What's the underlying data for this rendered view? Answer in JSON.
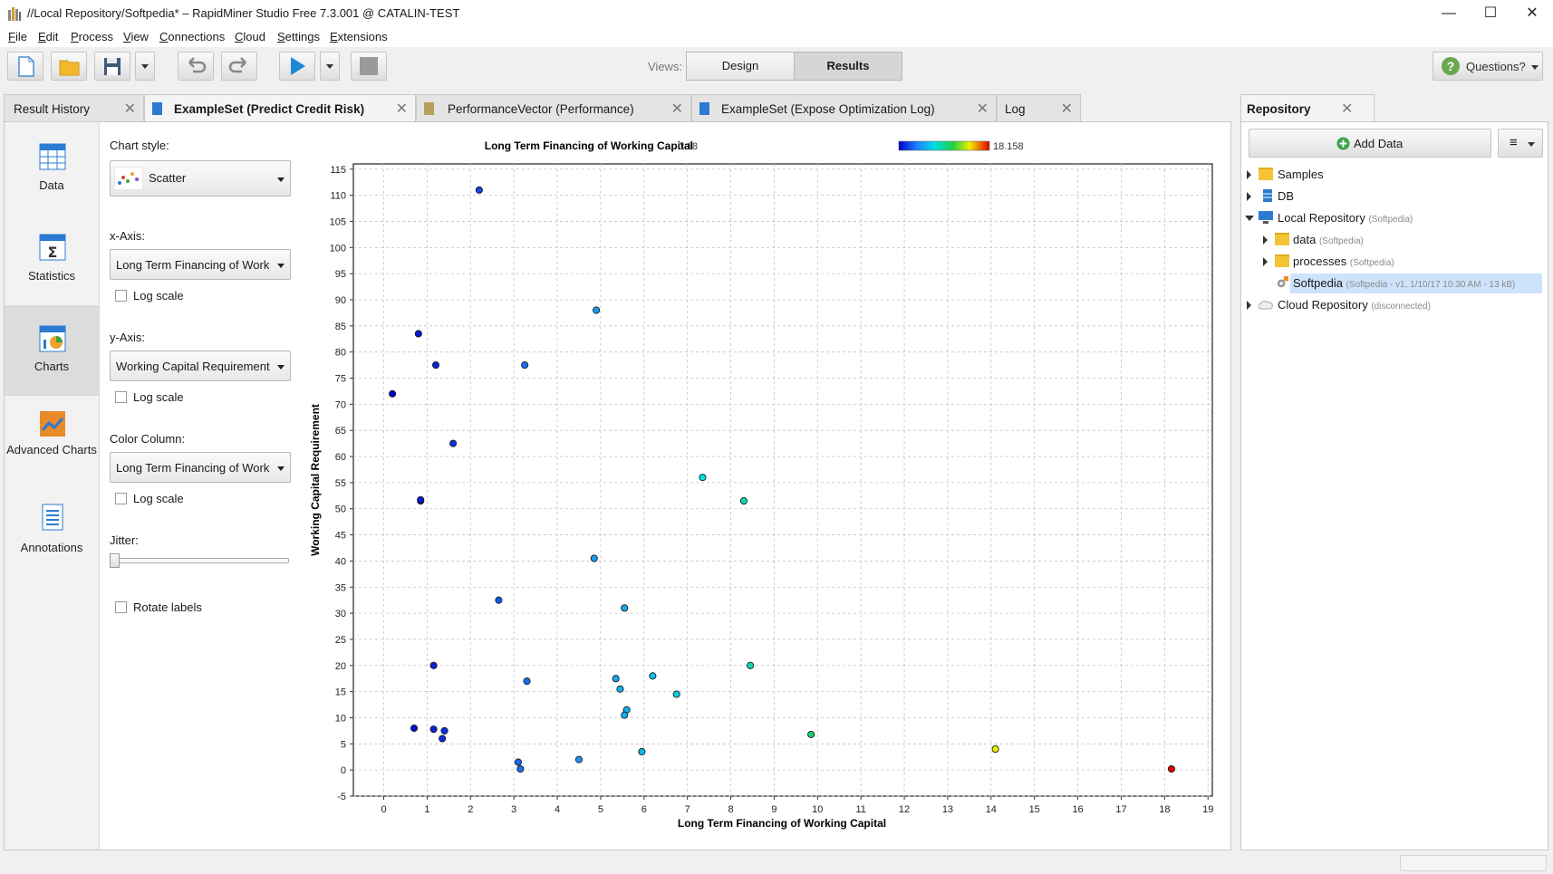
{
  "window": {
    "title": "//Local Repository/Softpedia* – RapidMiner Studio Free 7.3.001 @ CATALIN-TEST",
    "minimize": "—",
    "maximize": "☐",
    "close": "✕"
  },
  "menu": [
    "File",
    "Edit",
    "Process",
    "View",
    "Connections",
    "Cloud",
    "Settings",
    "Extensions"
  ],
  "toolbar": {
    "views_label": "Views:",
    "design_label": "Design",
    "results_label": "Results",
    "questions_label": "Questions?"
  },
  "tabs": [
    {
      "label": "Result History",
      "close": "✕"
    },
    {
      "label": "ExampleSet (Predict Credit Risk)",
      "close": "✕"
    },
    {
      "label": "PerformanceVector (Performance)",
      "close": "✕"
    },
    {
      "label": "ExampleSet (Expose Optimization Log)",
      "close": "✕"
    },
    {
      "label": "Log",
      "close": "✕"
    }
  ],
  "side_nav": [
    {
      "label": "Data",
      "icon": "data-table-icon"
    },
    {
      "label": "Statistics",
      "icon": "statistics-icon"
    },
    {
      "label": "Charts",
      "icon": "charts-icon"
    },
    {
      "label": "Advanced Charts",
      "icon": "advanced-charts-icon"
    },
    {
      "label": "Annotations",
      "icon": "annotations-icon"
    }
  ],
  "config": {
    "chart_style_label": "Chart style:",
    "chart_style_value": "Scatter",
    "x_axis_label": "x-Axis:",
    "x_axis_value": "Long Term Financing of Worki...",
    "x_log_label": "Log scale",
    "y_axis_label": "y-Axis:",
    "y_axis_value": "Working Capital Requirement",
    "y_log_label": "Log scale",
    "color_column_label": "Color Column:",
    "color_column_value": "Long Term Financing of Worki...",
    "color_log_label": "Log scale",
    "jitter_label": "Jitter:",
    "jitter_value": 0,
    "rotate_labels_label": "Rotate labels"
  },
  "chart_data": {
    "type": "scatter",
    "title": "",
    "legend_title": "Long Term Financing of Working Capital",
    "legend_min": "0.18",
    "legend_max": "18.158",
    "xlabel": "Long Term Financing of Working Capital",
    "ylabel": "Working Capital Requirement",
    "xlim": [
      -0.7,
      19.1
    ],
    "ylim": [
      -5,
      116
    ],
    "xticks": [
      0,
      1,
      2,
      3,
      4,
      5,
      6,
      7,
      8,
      9,
      10,
      11,
      12,
      13,
      14,
      15,
      16,
      17,
      18,
      19
    ],
    "yticks": [
      -5,
      0,
      5,
      10,
      15,
      20,
      25,
      30,
      35,
      40,
      45,
      50,
      55,
      60,
      65,
      70,
      75,
      80,
      85,
      90,
      95,
      100,
      105,
      110,
      115
    ],
    "grid": true,
    "color_range": [
      0.18,
      18.158
    ],
    "points": [
      {
        "x": 2.2,
        "y": 111
      },
      {
        "x": 0.8,
        "y": 83.5
      },
      {
        "x": 1.2,
        "y": 77.5
      },
      {
        "x": 0.2,
        "y": 72
      },
      {
        "x": 1.6,
        "y": 62.5
      },
      {
        "x": 0.85,
        "y": 51.5
      },
      {
        "x": 0.85,
        "y": 51.7
      },
      {
        "x": 4.9,
        "y": 88
      },
      {
        "x": 3.25,
        "y": 77.5
      },
      {
        "x": 7.35,
        "y": 56
      },
      {
        "x": 8.3,
        "y": 51.5
      },
      {
        "x": 4.85,
        "y": 40.5
      },
      {
        "x": 2.65,
        "y": 32.5
      },
      {
        "x": 5.55,
        "y": 31
      },
      {
        "x": 1.15,
        "y": 20
      },
      {
        "x": 3.3,
        "y": 17
      },
      {
        "x": 5.35,
        "y": 17.5
      },
      {
        "x": 6.2,
        "y": 18
      },
      {
        "x": 8.45,
        "y": 20
      },
      {
        "x": 5.45,
        "y": 15.5
      },
      {
        "x": 6.75,
        "y": 14.5
      },
      {
        "x": 5.6,
        "y": 11.5
      },
      {
        "x": 5.55,
        "y": 10.5
      },
      {
        "x": 0.7,
        "y": 8
      },
      {
        "x": 1.15,
        "y": 7.8
      },
      {
        "x": 1.4,
        "y": 7.5
      },
      {
        "x": 1.35,
        "y": 6
      },
      {
        "x": 9.85,
        "y": 6.8
      },
      {
        "x": 5.95,
        "y": 3.5
      },
      {
        "x": 4.5,
        "y": 2
      },
      {
        "x": 3.1,
        "y": 1.5
      },
      {
        "x": 3.15,
        "y": 0.2
      },
      {
        "x": 14.1,
        "y": 4
      },
      {
        "x": 18.158,
        "y": 0.2
      }
    ]
  },
  "repository": {
    "tab_label": "Repository",
    "tab_close": "✕",
    "add_data_label": "Add Data",
    "menu_label": "≡",
    "tree": [
      {
        "name": "Samples",
        "meta": "",
        "level": 0,
        "expanded": false,
        "icon": "folder-icon"
      },
      {
        "name": "DB",
        "meta": "",
        "level": 0,
        "expanded": false,
        "icon": "database-icon"
      },
      {
        "name": "Local Repository",
        "meta": "(Softpedia)",
        "level": 0,
        "expanded": true,
        "icon": "computer-icon"
      },
      {
        "name": "data",
        "meta": "(Softpedia)",
        "level": 1,
        "expanded": false,
        "icon": "folder-icon"
      },
      {
        "name": "processes",
        "meta": "(Softpedia)",
        "level": 1,
        "expanded": false,
        "icon": "folder-icon"
      },
      {
        "name": "Softpedia",
        "meta": "(Softpedia - v1, 1/10/17 10:30 AM - 13 kB)",
        "level": 1,
        "expanded": null,
        "icon": "process-icon",
        "selected": true
      },
      {
        "name": "Cloud Repository",
        "meta": "(disconnected)",
        "level": 0,
        "expanded": false,
        "icon": "cloud-icon"
      }
    ]
  },
  "colors": {
    "accent_blue": "#2a7bd1",
    "selected_row": "#cde3fb",
    "run_blue": "#1e88d6",
    "questions_green": "#6aa84f"
  }
}
